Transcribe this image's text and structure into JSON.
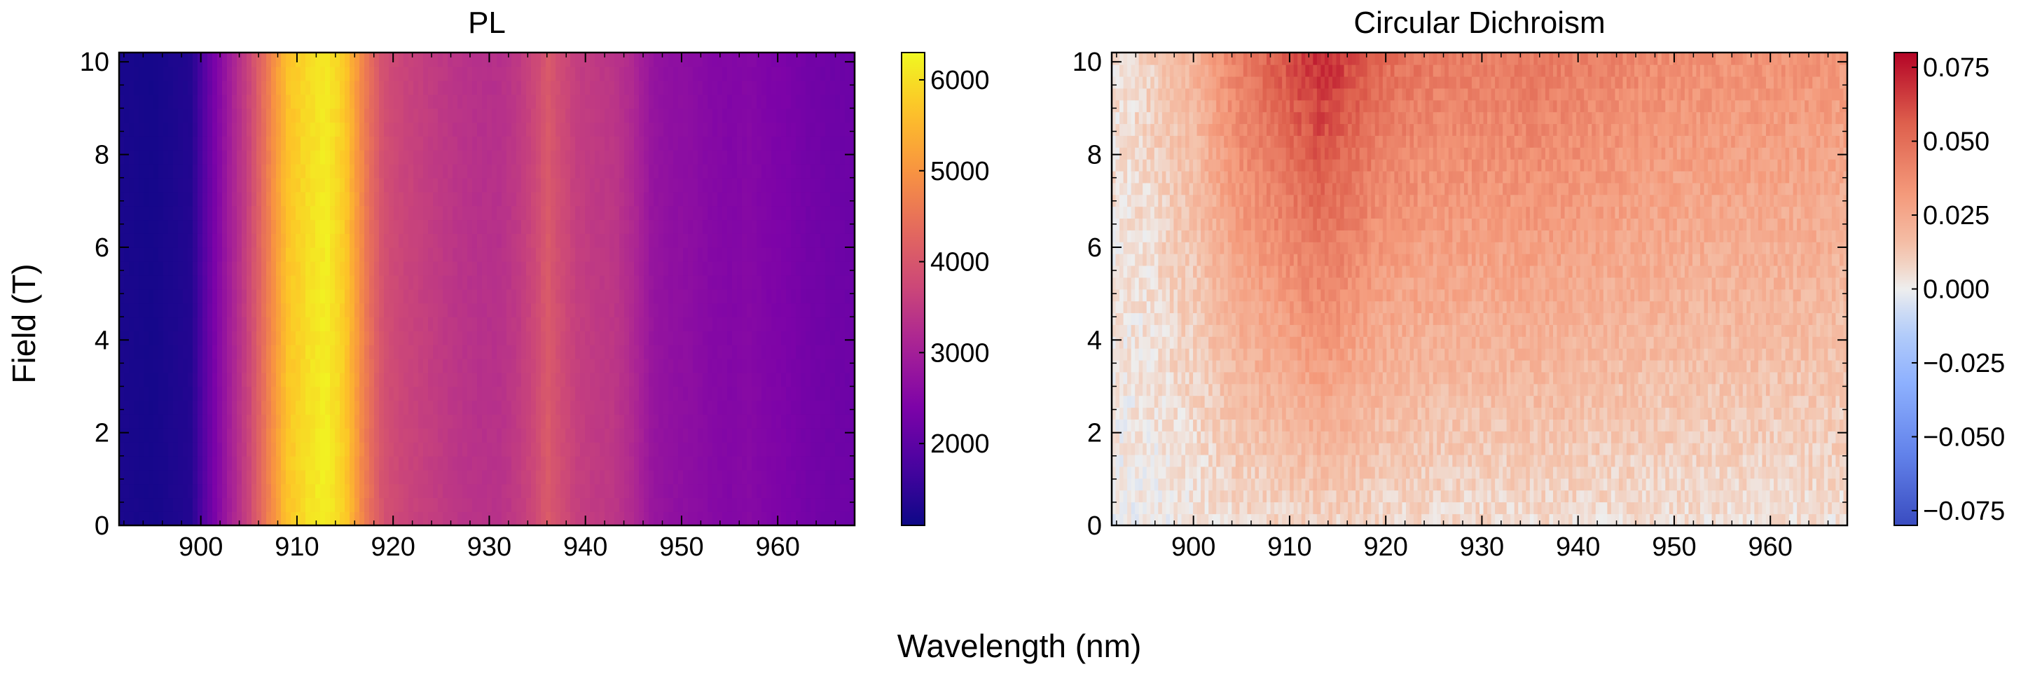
{
  "figure": {
    "shared_xlabel": "Wavelength (nm)",
    "shared_ylabel": "Field (T)"
  },
  "chart_data": [
    {
      "type": "heatmap",
      "title": "PL",
      "xlabel": "Wavelength (nm)",
      "ylabel": "Field (T)",
      "xlim": [
        891.5,
        968
      ],
      "ylim": [
        0,
        10.2
      ],
      "xticks": [
        900,
        910,
        920,
        930,
        940,
        950,
        960
      ],
      "yticks": [
        0,
        2,
        4,
        6,
        8,
        10
      ],
      "colormap": "plasma",
      "colorbar": {
        "range": [
          1100,
          6300
        ],
        "ticks": [
          2000,
          3000,
          4000,
          5000,
          6000
        ]
      },
      "wavelength_profile": {
        "x": [
          891.5,
          895,
          899,
          901,
          903,
          905,
          907,
          909,
          911,
          913,
          915,
          917,
          919,
          921,
          923,
          925,
          927,
          929,
          931,
          933,
          935,
          936,
          937,
          939,
          941,
          943,
          945,
          947,
          949,
          951,
          953,
          955,
          957,
          959,
          961,
          963,
          965,
          968
        ],
        "values": [
          1250,
          1200,
          1350,
          2200,
          3000,
          3700,
          4700,
          5700,
          6000,
          6200,
          5800,
          4700,
          3900,
          3700,
          3600,
          3500,
          3400,
          3350,
          3350,
          3500,
          3800,
          4100,
          3900,
          3600,
          3500,
          3450,
          3200,
          2800,
          2700,
          2650,
          2550,
          2500,
          2550,
          2450,
          2400,
          2300,
          2250,
          2200
        ]
      },
      "note_field_dependence": "intensity nearly constant with field"
    },
    {
      "type": "heatmap",
      "title": "Circular Dichroism",
      "xlabel": "Wavelength (nm)",
      "ylabel": "Field (T)",
      "xlim": [
        891.5,
        968
      ],
      "ylim": [
        0,
        10.2
      ],
      "xticks": [
        900,
        910,
        920,
        930,
        940,
        950,
        960
      ],
      "yticks": [
        0,
        2,
        4,
        6,
        8,
        10
      ],
      "colormap": "coolwarm",
      "colorbar": {
        "range": [
          -0.08,
          0.08
        ],
        "ticks": [
          -0.075,
          -0.05,
          -0.025,
          0.0,
          0.025,
          0.05,
          0.075
        ],
        "tick_labels": [
          "−0.075",
          "−0.050",
          "−0.025",
          "0.000",
          "0.025",
          "0.050",
          "0.075"
        ]
      },
      "wavelength_profile_at_10T": {
        "x": [
          891.5,
          895,
          900,
          905,
          910,
          913,
          915,
          920,
          925,
          930,
          935,
          940,
          945,
          950,
          955,
          960,
          965,
          968
        ],
        "values": [
          0.005,
          0.008,
          0.02,
          0.045,
          0.06,
          0.07,
          0.066,
          0.05,
          0.045,
          0.044,
          0.046,
          0.043,
          0.04,
          0.037,
          0.036,
          0.035,
          0.034,
          0.032
        ]
      },
      "field_scaling": "CD increases roughly linearly from ~0 at 0 T to maximum at 10 T"
    }
  ]
}
